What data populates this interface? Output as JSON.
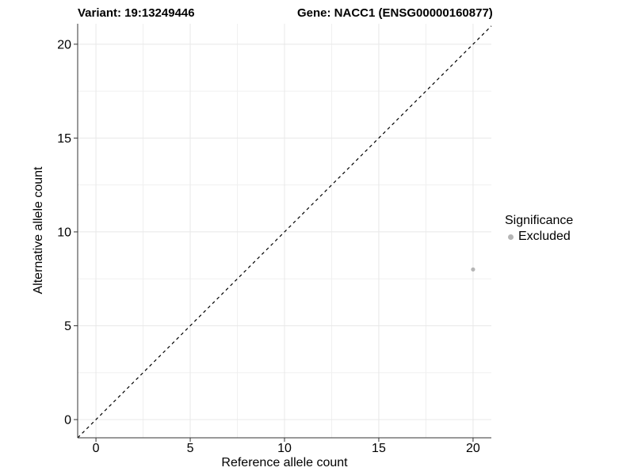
{
  "page": {
    "background": "#ffffff"
  },
  "chart_data": {
    "type": "scatter",
    "title_left": "Variant: 19:13249446",
    "title_right": "Gene: NACC1 (ENSG00000160877)",
    "xlabel": "Reference allele count",
    "ylabel": "Alternative allele count",
    "xlim": [
      -0.97,
      20.97
    ],
    "ylim": [
      -0.97,
      21.09
    ],
    "x_ticks": [
      0,
      5,
      10,
      15,
      20
    ],
    "y_ticks": [
      0,
      5,
      10,
      15,
      20
    ],
    "x_minor_ticks": [
      2.5,
      7.5,
      12.5,
      17.5
    ],
    "y_minor_ticks": [
      2.5,
      7.5,
      12.5,
      17.5
    ],
    "grid": "major+minor",
    "series": [
      {
        "name": "Excluded",
        "color": "#b5b5b5",
        "points": [
          {
            "x": 20,
            "y": 8
          }
        ]
      }
    ],
    "reference_line": {
      "slope": 1,
      "intercept": 0,
      "style": "dashed",
      "color": "#000000"
    },
    "legend": {
      "title": "Significance",
      "position": "right",
      "items": [
        {
          "label": "Excluded",
          "color": "#b5b5b5",
          "marker": "circle"
        }
      ]
    },
    "colors": {
      "axis_line": "#333333",
      "tick_label": "#000000",
      "title": "#000000",
      "grid_major": "#e8e8e8",
      "grid_minor": "#f0f0f0",
      "panel_background": "#ffffff",
      "point": "#b5b5b5"
    }
  }
}
